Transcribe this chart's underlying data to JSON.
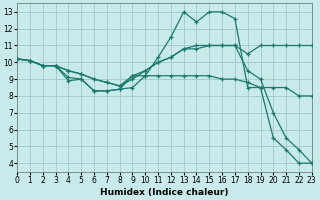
{
  "xlabel": "Humidex (Indice chaleur)",
  "background_color": "#c8eaea",
  "grid_color": "#a0c8c8",
  "line_color": "#1a7a6e",
  "xlim": [
    0,
    23
  ],
  "ylim": [
    3.5,
    13.5
  ],
  "xticks": [
    0,
    1,
    2,
    3,
    4,
    5,
    6,
    7,
    8,
    9,
    10,
    11,
    12,
    13,
    14,
    15,
    16,
    17,
    18,
    19,
    20,
    21,
    22,
    23
  ],
  "yticks": [
    4,
    5,
    6,
    7,
    8,
    9,
    10,
    11,
    12,
    13
  ],
  "lines": [
    {
      "x": [
        0,
        1,
        2,
        3,
        4,
        5,
        6,
        7,
        8,
        9,
        10,
        11,
        12,
        13,
        14,
        15,
        16,
        17,
        18,
        19,
        20,
        21,
        22,
        23
      ],
      "y": [
        10.2,
        10.1,
        9.8,
        9.8,
        9.1,
        9.0,
        8.3,
        8.3,
        8.4,
        9.2,
        9.2,
        9.2,
        9.2,
        9.2,
        9.2,
        9.2,
        9.0,
        9.0,
        8.8,
        8.5,
        8.5,
        8.5,
        8.0,
        8.0
      ]
    },
    {
      "x": [
        0,
        1,
        2,
        3,
        4,
        5,
        6,
        7,
        8,
        9,
        10,
        11,
        12,
        13,
        14,
        15,
        16,
        17,
        18,
        19,
        20,
        21,
        22,
        23
      ],
      "y": [
        10.2,
        10.1,
        9.8,
        9.8,
        9.5,
        9.3,
        9.0,
        8.8,
        8.6,
        9.2,
        9.5,
        10.0,
        10.3,
        10.8,
        11.0,
        11.0,
        11.0,
        11.0,
        10.5,
        11.0,
        11.0,
        11.0,
        11.0,
        11.0
      ]
    },
    {
      "x": [
        0,
        1,
        2,
        3,
        4,
        5,
        6,
        7,
        8,
        9,
        10,
        11,
        12,
        13,
        14,
        15,
        16,
        17,
        18,
        19,
        20,
        21,
        22,
        23
      ],
      "y": [
        10.2,
        10.1,
        9.8,
        9.8,
        8.9,
        9.0,
        8.3,
        8.3,
        8.4,
        8.5,
        9.2,
        10.3,
        11.5,
        13.0,
        12.4,
        13.0,
        13.0,
        12.6,
        8.5,
        8.5,
        5.5,
        4.8,
        4.0,
        4.0
      ]
    },
    {
      "x": [
        0,
        1,
        2,
        3,
        4,
        5,
        6,
        7,
        8,
        9,
        10,
        11,
        12,
        13,
        14,
        15,
        16,
        17,
        18,
        19,
        20,
        21,
        22,
        23
      ],
      "y": [
        10.2,
        10.1,
        9.8,
        9.8,
        9.5,
        9.3,
        9.0,
        8.8,
        8.6,
        9.0,
        9.5,
        10.0,
        10.3,
        10.8,
        10.8,
        11.0,
        11.0,
        11.0,
        9.5,
        9.0,
        7.0,
        5.5,
        4.8,
        4.0
      ]
    }
  ]
}
